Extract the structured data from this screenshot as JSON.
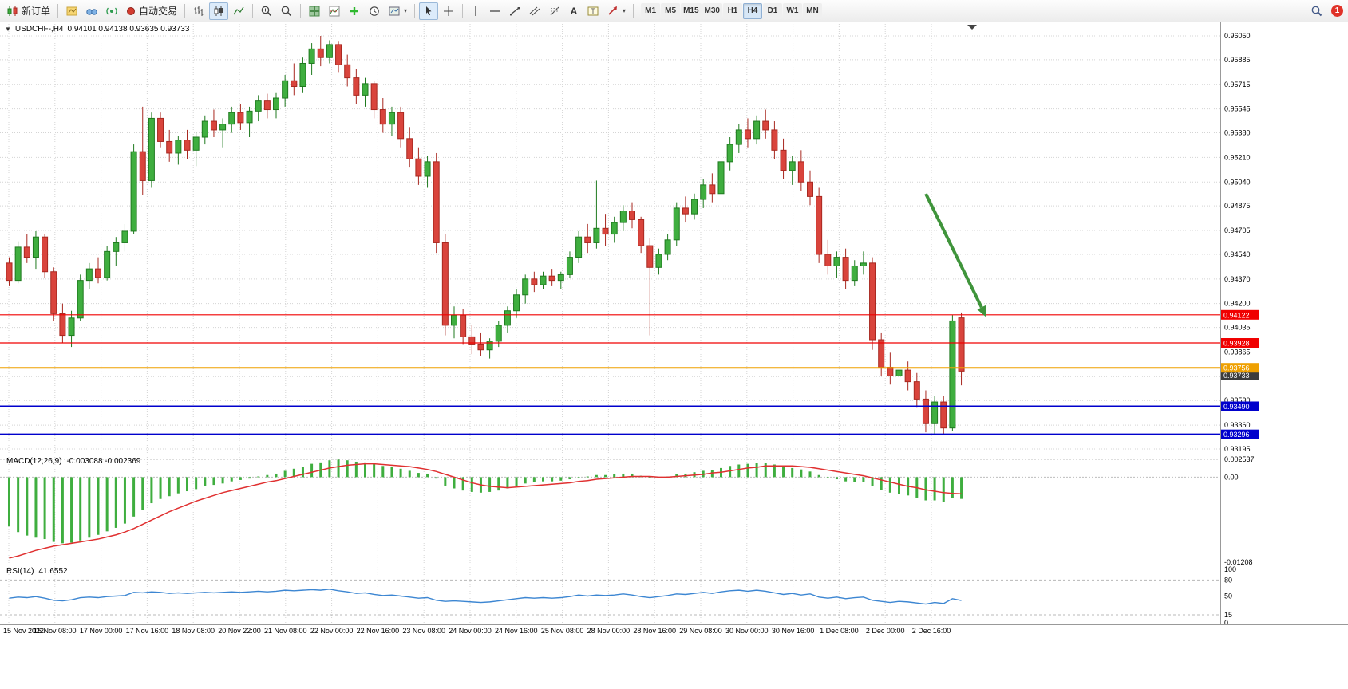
{
  "toolbar": {
    "new_order_label": "新订单",
    "autotrading_label": "自动交易",
    "timeframes": [
      "M1",
      "M5",
      "M15",
      "M30",
      "H1",
      "H4",
      "D1",
      "W1",
      "MN"
    ],
    "active_timeframe": "H4",
    "notification_count": "1"
  },
  "chart": {
    "title_symbol": "USDCHF-,H4",
    "ohlc_text": "0.94101 0.94138 0.93635 0.93733"
  },
  "chart_data": {
    "type": "candlestick",
    "symbol": "USDCHF",
    "period": "H4",
    "ohlc": {
      "open": 0.94101,
      "high": 0.94138,
      "low": 0.93635,
      "close": 0.93733
    },
    "price_axis_ticks": [
      "0.96050",
      "0.95885",
      "0.95715",
      "0.95545",
      "0.95380",
      "0.95210",
      "0.95040",
      "0.94875",
      "0.94705",
      "0.94540",
      "0.94370",
      "0.94200",
      "0.94035",
      "0.93865",
      "0.93695",
      "0.93530",
      "0.93360",
      "0.93195"
    ],
    "time_axis_labels": [
      "15 Nov 2022",
      "16 Nov 08:00",
      "17 Nov 00:00",
      "17 Nov 16:00",
      "18 Nov 08:00",
      "20 Nov 22:00",
      "21 Nov 08:00",
      "22 Nov 00:00",
      "22 Nov 16:00",
      "23 Nov 08:00",
      "24 Nov 00:00",
      "24 Nov 16:00",
      "25 Nov 08:00",
      "28 Nov 00:00",
      "28 Nov 16:00",
      "29 Nov 08:00",
      "30 Nov 00:00",
      "30 Nov 16:00",
      "1 Dec 08:00",
      "2 Dec 00:00",
      "2 Dec 16:00"
    ],
    "candles": [
      [
        0.9448,
        0.9452,
        0.9432,
        0.9436
      ],
      [
        0.9436,
        0.9463,
        0.9434,
        0.9459
      ],
      [
        0.9459,
        0.9468,
        0.9448,
        0.9452
      ],
      [
        0.9452,
        0.947,
        0.9444,
        0.9466
      ],
      [
        0.9466,
        0.9468,
        0.9438,
        0.9442
      ],
      [
        0.9442,
        0.9445,
        0.9408,
        0.9413
      ],
      [
        0.9413,
        0.942,
        0.9393,
        0.9398
      ],
      [
        0.9398,
        0.9415,
        0.939,
        0.941
      ],
      [
        0.941,
        0.944,
        0.9408,
        0.9436
      ],
      [
        0.9436,
        0.9448,
        0.943,
        0.9444
      ],
      [
        0.9444,
        0.9452,
        0.9434,
        0.9438
      ],
      [
        0.9438,
        0.946,
        0.9436,
        0.9456
      ],
      [
        0.9456,
        0.9466,
        0.9446,
        0.9462
      ],
      [
        0.9462,
        0.9475,
        0.9456,
        0.947
      ],
      [
        0.947,
        0.953,
        0.9468,
        0.9525
      ],
      [
        0.9525,
        0.9556,
        0.9495,
        0.9505
      ],
      [
        0.9505,
        0.9552,
        0.95,
        0.9548
      ],
      [
        0.9548,
        0.9552,
        0.9528,
        0.9532
      ],
      [
        0.9532,
        0.954,
        0.9518,
        0.9524
      ],
      [
        0.9524,
        0.9536,
        0.9516,
        0.9533
      ],
      [
        0.9533,
        0.954,
        0.952,
        0.9526
      ],
      [
        0.9526,
        0.9538,
        0.9515,
        0.9535
      ],
      [
        0.9535,
        0.955,
        0.953,
        0.9546
      ],
      [
        0.9546,
        0.9554,
        0.9535,
        0.954
      ],
      [
        0.954,
        0.9548,
        0.9528,
        0.9544
      ],
      [
        0.9544,
        0.9556,
        0.9538,
        0.9552
      ],
      [
        0.9552,
        0.9558,
        0.954,
        0.9545
      ],
      [
        0.9545,
        0.9556,
        0.9535,
        0.9553
      ],
      [
        0.9553,
        0.9564,
        0.9546,
        0.956
      ],
      [
        0.956,
        0.9565,
        0.9548,
        0.9554
      ],
      [
        0.9554,
        0.9566,
        0.9548,
        0.9562
      ],
      [
        0.9562,
        0.9578,
        0.9556,
        0.9574
      ],
      [
        0.9574,
        0.9586,
        0.9564,
        0.957
      ],
      [
        0.957,
        0.959,
        0.9566,
        0.9586
      ],
      [
        0.9586,
        0.96,
        0.9578,
        0.9596
      ],
      [
        0.9596,
        0.9605,
        0.9584,
        0.959
      ],
      [
        0.959,
        0.9602,
        0.9586,
        0.9599
      ],
      [
        0.9599,
        0.9601,
        0.958,
        0.9585
      ],
      [
        0.9585,
        0.9592,
        0.957,
        0.9576
      ],
      [
        0.9576,
        0.9582,
        0.9558,
        0.9564
      ],
      [
        0.9564,
        0.9576,
        0.9556,
        0.9572
      ],
      [
        0.9572,
        0.9574,
        0.9548,
        0.9554
      ],
      [
        0.9554,
        0.9562,
        0.9538,
        0.9544
      ],
      [
        0.9544,
        0.9556,
        0.9536,
        0.9552
      ],
      [
        0.9552,
        0.9556,
        0.9528,
        0.9534
      ],
      [
        0.9534,
        0.9542,
        0.9514,
        0.952
      ],
      [
        0.952,
        0.9528,
        0.9502,
        0.9508
      ],
      [
        0.9508,
        0.9522,
        0.95,
        0.9518
      ],
      [
        0.9518,
        0.9524,
        0.9455,
        0.9462
      ],
      [
        0.9462,
        0.9468,
        0.9398,
        0.9405
      ],
      [
        0.9405,
        0.9418,
        0.9396,
        0.9412
      ],
      [
        0.9412,
        0.9416,
        0.9392,
        0.9397
      ],
      [
        0.9397,
        0.9405,
        0.9385,
        0.9392
      ],
      [
        0.9392,
        0.94,
        0.9384,
        0.9388
      ],
      [
        0.9388,
        0.9396,
        0.9382,
        0.9394
      ],
      [
        0.9394,
        0.9408,
        0.939,
        0.9405
      ],
      [
        0.9405,
        0.9418,
        0.94,
        0.9415
      ],
      [
        0.9415,
        0.943,
        0.941,
        0.9426
      ],
      [
        0.9426,
        0.944,
        0.942,
        0.9437
      ],
      [
        0.9437,
        0.9442,
        0.9428,
        0.9433
      ],
      [
        0.9433,
        0.9442,
        0.943,
        0.9439
      ],
      [
        0.9439,
        0.9444,
        0.9432,
        0.9436
      ],
      [
        0.9436,
        0.9442,
        0.943,
        0.944
      ],
      [
        0.944,
        0.9456,
        0.9438,
        0.9452
      ],
      [
        0.9452,
        0.947,
        0.9448,
        0.9466
      ],
      [
        0.9466,
        0.9475,
        0.9455,
        0.9462
      ],
      [
        0.9462,
        0.9505,
        0.9458,
        0.9472
      ],
      [
        0.9472,
        0.9482,
        0.946,
        0.9468
      ],
      [
        0.9468,
        0.948,
        0.9462,
        0.9476
      ],
      [
        0.9476,
        0.9488,
        0.947,
        0.9484
      ],
      [
        0.9484,
        0.949,
        0.9472,
        0.9478
      ],
      [
        0.9478,
        0.948,
        0.9455,
        0.946
      ],
      [
        0.946,
        0.9465,
        0.9398,
        0.9445
      ],
      [
        0.9445,
        0.9458,
        0.944,
        0.9454
      ],
      [
        0.9454,
        0.9468,
        0.945,
        0.9464
      ],
      [
        0.9464,
        0.949,
        0.946,
        0.9486
      ],
      [
        0.9486,
        0.9494,
        0.9476,
        0.9482
      ],
      [
        0.9482,
        0.9496,
        0.9478,
        0.9492
      ],
      [
        0.9492,
        0.9506,
        0.9486,
        0.9502
      ],
      [
        0.9502,
        0.951,
        0.949,
        0.9496
      ],
      [
        0.9496,
        0.9522,
        0.9492,
        0.9518
      ],
      [
        0.9518,
        0.9535,
        0.9512,
        0.953
      ],
      [
        0.953,
        0.9544,
        0.9524,
        0.954
      ],
      [
        0.954,
        0.9548,
        0.9528,
        0.9534
      ],
      [
        0.9534,
        0.955,
        0.953,
        0.9546
      ],
      [
        0.9546,
        0.9554,
        0.9534,
        0.954
      ],
      [
        0.954,
        0.9546,
        0.952,
        0.9526
      ],
      [
        0.9526,
        0.9534,
        0.9506,
        0.9512
      ],
      [
        0.9512,
        0.9522,
        0.9502,
        0.9518
      ],
      [
        0.9518,
        0.9526,
        0.9498,
        0.9504
      ],
      [
        0.9504,
        0.9512,
        0.9488,
        0.9494
      ],
      [
        0.9494,
        0.95,
        0.9448,
        0.9454
      ],
      [
        0.9454,
        0.9464,
        0.944,
        0.9446
      ],
      [
        0.9446,
        0.9456,
        0.9438,
        0.9452
      ],
      [
        0.9452,
        0.9458,
        0.943,
        0.9436
      ],
      [
        0.9436,
        0.945,
        0.9432,
        0.9446
      ],
      [
        0.9446,
        0.9456,
        0.944,
        0.9448
      ],
      [
        0.9448,
        0.9452,
        0.9388,
        0.9395
      ],
      [
        0.9395,
        0.94,
        0.937,
        0.9376
      ],
      [
        0.9376,
        0.9386,
        0.9364,
        0.937
      ],
      [
        0.937,
        0.9378,
        0.9362,
        0.9374
      ],
      [
        0.9374,
        0.938,
        0.936,
        0.9366
      ],
      [
        0.9366,
        0.9372,
        0.9348,
        0.9354
      ],
      [
        0.9354,
        0.936,
        0.9331,
        0.9337
      ],
      [
        0.9337,
        0.9356,
        0.933,
        0.9352
      ],
      [
        0.9352,
        0.9356,
        0.9329,
        0.9334
      ],
      [
        0.9334,
        0.9412,
        0.9332,
        0.9408
      ],
      [
        0.94101,
        0.94138,
        0.93635,
        0.93733
      ]
    ],
    "horizontal_lines": [
      {
        "price": 0.94122,
        "label": "0.94122",
        "color": "#f00000",
        "width": 1.2
      },
      {
        "price": 0.93928,
        "label": "0.93928",
        "color": "#f00000",
        "width": 1.2
      },
      {
        "price": 0.93756,
        "label": "0.93756",
        "color": "#efa000",
        "width": 2
      },
      {
        "price": 0.9349,
        "label": "0.93490",
        "color": "#0000cc",
        "width": 2
      },
      {
        "price": 0.93296,
        "label": "0.93296",
        "color": "#0000cc",
        "width": 2
      }
    ],
    "current_price_tag": {
      "price": 0.93733,
      "label": "0.93733",
      "color": "#3c3c3c"
    },
    "arrow_annotation": {
      "from": [
        1160,
        215
      ],
      "to": [
        1236,
        370
      ],
      "color": "#3f943b",
      "width": 4
    },
    "colors": {
      "up": "#3fae3f",
      "up_stroke": "#1f7a1f",
      "down": "#d9443c",
      "down_stroke": "#a82820",
      "macd_histogram": "#3fae3f",
      "macd_signal": "#e03030",
      "rsi": "#3c86d2"
    },
    "indicators": {
      "macd": {
        "label": "MACD(12,26,9)",
        "values_text": "-0.003088 -0.002369",
        "axis_ticks": [
          "0.002537",
          "0.00",
          "-0.01208"
        ],
        "histogram": [
          -0.007,
          -0.0078,
          -0.0083,
          -0.0086,
          -0.0088,
          -0.0092,
          -0.0094,
          -0.0093,
          -0.009,
          -0.0086,
          -0.0082,
          -0.0077,
          -0.0072,
          -0.0066,
          -0.0056,
          -0.0046,
          -0.0037,
          -0.0031,
          -0.0027,
          -0.0023,
          -0.002,
          -0.0017,
          -0.0013,
          -0.0011,
          -0.0009,
          -0.0006,
          -0.0004,
          -0.0002,
          0.0001,
          0.0003,
          0.0005,
          0.0009,
          0.0012,
          0.0015,
          0.0019,
          0.0021,
          0.0024,
          0.0025,
          0.0024,
          0.0022,
          0.0021,
          0.0019,
          0.0016,
          0.0015,
          0.0012,
          0.0009,
          0.0006,
          0.0005,
          -0.0002,
          -0.0012,
          -0.0016,
          -0.0019,
          -0.0021,
          -0.0022,
          -0.0021,
          -0.0019,
          -0.0016,
          -0.0013,
          -0.0009,
          -0.0007,
          -0.0006,
          -0.0006,
          -0.0005,
          -0.0003,
          0.0,
          0.0001,
          0.0003,
          0.0003,
          0.0004,
          0.0005,
          0.0005,
          0.0002,
          -0.0001,
          -0.0001,
          0.0001,
          0.0004,
          0.0005,
          0.0007,
          0.0009,
          0.001,
          0.0013,
          0.0016,
          0.0018,
          0.0019,
          0.002,
          0.002,
          0.0018,
          0.0015,
          0.0013,
          0.0011,
          0.0008,
          0.0003,
          -0.0001,
          -0.0003,
          -0.0006,
          -0.0007,
          -0.0007,
          -0.0013,
          -0.0018,
          -0.0022,
          -0.0024,
          -0.0026,
          -0.0029,
          -0.0033,
          -0.0033,
          -0.0035,
          -0.003,
          -0.003088
        ],
        "signal": [
          -0.0115,
          -0.0112,
          -0.0108,
          -0.0104,
          -0.0101,
          -0.0098,
          -0.0096,
          -0.0094,
          -0.0092,
          -0.009,
          -0.0088,
          -0.0085,
          -0.0082,
          -0.0078,
          -0.0073,
          -0.0067,
          -0.0061,
          -0.0055,
          -0.0049,
          -0.0044,
          -0.0039,
          -0.0034,
          -0.003,
          -0.0026,
          -0.0022,
          -0.0019,
          -0.0016,
          -0.0013,
          -0.001,
          -0.0007,
          -0.0005,
          -0.0002,
          0.0001,
          0.0004,
          0.0007,
          0.001,
          0.0013,
          0.0015,
          0.0017,
          0.0018,
          0.0019,
          0.0019,
          0.0018,
          0.0017,
          0.0016,
          0.0015,
          0.0013,
          0.0011,
          0.0008,
          0.0004,
          0.0,
          -0.0004,
          -0.0008,
          -0.0011,
          -0.0013,
          -0.0014,
          -0.0015,
          -0.0014,
          -0.0013,
          -0.0012,
          -0.0011,
          -0.001,
          -0.0009,
          -0.0008,
          -0.0006,
          -0.0005,
          -0.0003,
          -0.0002,
          -0.0001,
          0.0,
          0.0001,
          0.0001,
          0.0001,
          0.0,
          0.0,
          0.0001,
          0.0002,
          0.0003,
          0.0004,
          0.0006,
          0.0007,
          0.0009,
          0.0011,
          0.0013,
          0.0014,
          0.0016,
          0.0016,
          0.0016,
          0.0016,
          0.0015,
          0.0014,
          0.0012,
          0.001,
          0.0008,
          0.0006,
          0.0004,
          0.0002,
          -0.0001,
          -0.0004,
          -0.0007,
          -0.001,
          -0.0013,
          -0.0015,
          -0.0018,
          -0.002,
          -0.0022,
          -0.0023,
          -0.002369
        ]
      },
      "rsi": {
        "label": "RSI(14)",
        "value_text": "41.6552",
        "axis_ticks": [
          "100",
          "80",
          "50",
          "15",
          "0"
        ],
        "levels": [
          80,
          50,
          15
        ],
        "values": [
          46,
          48,
          47,
          49,
          46,
          42,
          41,
          43,
          47,
          48,
          47,
          49,
          50,
          51,
          57,
          56,
          58,
          57,
          55,
          56,
          55,
          56,
          57,
          56,
          57,
          58,
          57,
          58,
          59,
          58,
          59,
          61,
          60,
          61,
          62,
          61,
          63,
          60,
          58,
          55,
          56,
          53,
          51,
          52,
          50,
          48,
          46,
          47,
          42,
          40,
          41,
          40,
          39,
          38,
          39,
          41,
          43,
          45,
          47,
          46,
          47,
          46,
          47,
          49,
          52,
          50,
          52,
          51,
          52,
          54,
          52,
          49,
          47,
          49,
          51,
          54,
          53,
          55,
          57,
          55,
          58,
          60,
          61,
          59,
          61,
          59,
          56,
          53,
          55,
          52,
          54,
          48,
          46,
          48,
          45,
          47,
          48,
          42,
          40,
          38,
          40,
          39,
          37,
          35,
          38,
          36,
          45,
          41.6552
        ]
      }
    }
  }
}
